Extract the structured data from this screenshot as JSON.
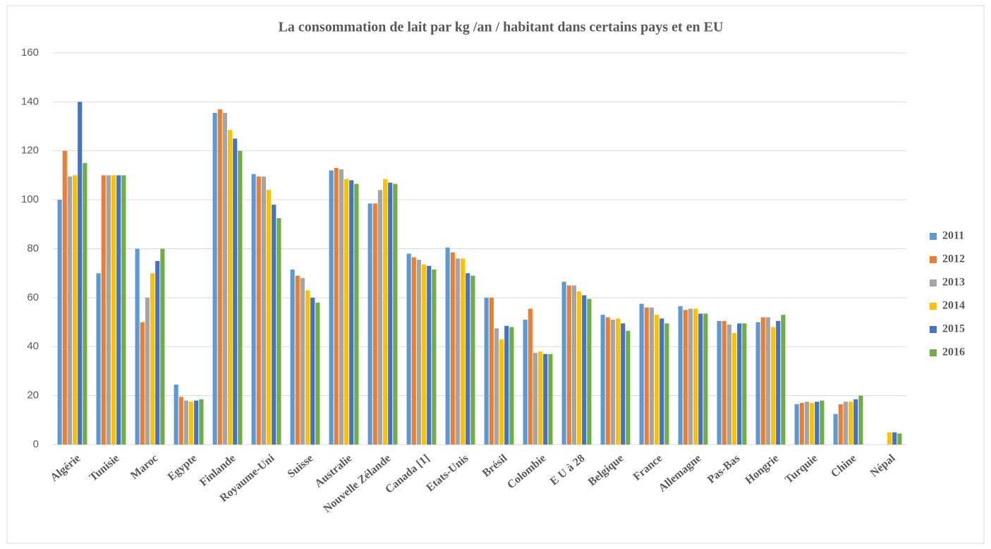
{
  "chart_data": {
    "type": "bar",
    "title": "La consommation de lait par kg /an / habitant dans certains pays et en EU",
    "categories": [
      "Algérie",
      "Tunisie",
      "Maroc",
      "Egypte",
      "Finlande",
      "Royaume-Uni",
      "Suisse",
      "Australie",
      "Nouvelle Zélande",
      "Canada  [1]",
      "Etats-Unis",
      "Brésil",
      "Colombie",
      "E U à 28",
      "Belgique",
      "France",
      "Allemagne",
      "Pas-Bas",
      "Hongrie",
      "Turquie",
      "Chine",
      "Népal"
    ],
    "series": [
      {
        "name": "2011",
        "color": "#5b9bd5",
        "values": [
          100,
          70,
          80,
          24.5,
          135.5,
          110.5,
          71.5,
          112,
          98.5,
          78,
          80.5,
          60,
          51,
          66.5,
          53,
          57.5,
          56.5,
          50.5,
          50,
          16.5,
          12.5,
          null
        ]
      },
      {
        "name": "2012",
        "color": "#ed7d31",
        "values": [
          120,
          110,
          50,
          19.5,
          137,
          109.5,
          69,
          113,
          98.5,
          76.5,
          78.5,
          60,
          55.5,
          65,
          52,
          56,
          55,
          50.5,
          52,
          17,
          16.5,
          null
        ]
      },
      {
        "name": "2013",
        "color": "#a5a5a5",
        "values": [
          109.5,
          110,
          60,
          18,
          135.5,
          109.5,
          68,
          112.5,
          104,
          75.5,
          76,
          47.5,
          37.5,
          65,
          51,
          56,
          55.5,
          49,
          52,
          17.5,
          17.5,
          null
        ]
      },
      {
        "name": "2014",
        "color": "#ffc000",
        "values": [
          110,
          110,
          70,
          17.5,
          128.5,
          104,
          63,
          108.5,
          108.5,
          73.5,
          76,
          43,
          38,
          62.5,
          51.5,
          53,
          55.5,
          45.5,
          48,
          17,
          17.5,
          5
        ]
      },
      {
        "name": "2015",
        "color": "#4472c4",
        "values": [
          140,
          110,
          75,
          18,
          125,
          98,
          60,
          108,
          107,
          73,
          70,
          48.5,
          37,
          61,
          49.5,
          51.5,
          53.5,
          49.5,
          50.5,
          17.5,
          18.5,
          5
        ]
      },
      {
        "name": "2016",
        "color": "#70ad47",
        "values": [
          115,
          110,
          80,
          18.5,
          120,
          92.5,
          58,
          106.5,
          106.5,
          71.5,
          69,
          48,
          37,
          59.5,
          46.5,
          49.5,
          53.5,
          49.5,
          53,
          18,
          20,
          4.5
        ]
      }
    ],
    "ylim": [
      0,
      160
    ],
    "yticks": [
      0,
      20,
      40,
      60,
      80,
      100,
      120,
      140,
      160
    ],
    "grid": true,
    "legend": "right"
  }
}
